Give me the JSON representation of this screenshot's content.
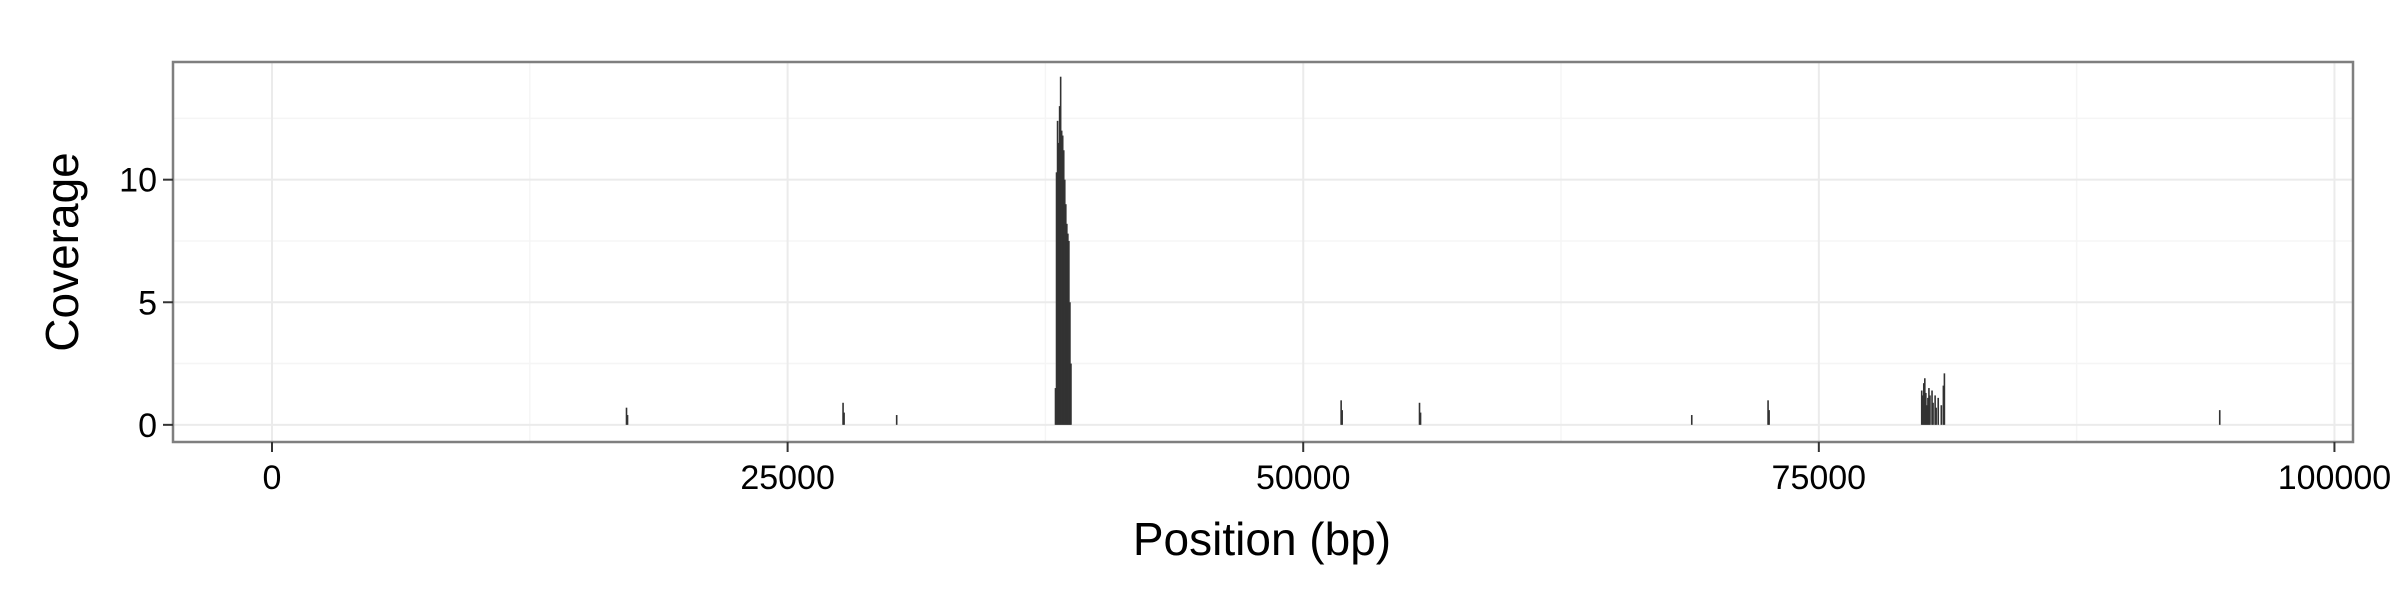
{
  "chart_data": {
    "type": "bar",
    "title": "",
    "xlabel": "Position (bp)",
    "ylabel": "Coverage",
    "xlim": [
      -4800,
      100900
    ],
    "ylim": [
      -0.7,
      14.8
    ],
    "x_ticks": [
      0,
      25000,
      50000,
      75000,
      100000
    ],
    "y_ticks": [
      0,
      5,
      10
    ],
    "x_minor_ticks": [
      12500,
      37500,
      62500,
      87500
    ],
    "y_minor_ticks": [
      2.5,
      7.5,
      12.5
    ],
    "grid": true,
    "legend": "none",
    "colors": {
      "bars": "#333333",
      "panel_border": "#7f7f7f",
      "grid_major": "#ebebeb",
      "grid_minor": "#f5f5f5",
      "text": "#000000",
      "ticks": "#333333"
    },
    "series": [
      {
        "x": [
          17150,
          17200,
          27650,
          27700,
          30250,
          37950,
          38000,
          38050,
          38100,
          38150,
          38200,
          38250,
          38300,
          38350,
          38400,
          38450,
          38500,
          38550,
          38600,
          38650,
          38700,
          51800,
          51850,
          55600,
          55650,
          68800,
          72500,
          72550,
          79950,
          80000,
          80050,
          80100,
          80150,
          80200,
          80250,
          80300,
          80350,
          80450,
          80500,
          80600,
          80650,
          80750,
          80900,
          81000,
          81050,
          94400
        ],
        "values": [
          0.7,
          0.4,
          0.9,
          0.5,
          0.4,
          1.5,
          10.3,
          12.4,
          11.5,
          13.0,
          14.2,
          12.0,
          11.8,
          11.2,
          10.0,
          9.0,
          8.2,
          7.8,
          7.5,
          5.0,
          2.5,
          1.0,
          0.6,
          0.9,
          0.5,
          0.4,
          1.0,
          0.6,
          1.4,
          1.2,
          1.7,
          1.9,
          1.3,
          0.8,
          1.1,
          1.5,
          1.2,
          1.4,
          0.9,
          1.2,
          0.7,
          1.1,
          0.8,
          1.6,
          2.1,
          0.6
        ]
      }
    ]
  }
}
